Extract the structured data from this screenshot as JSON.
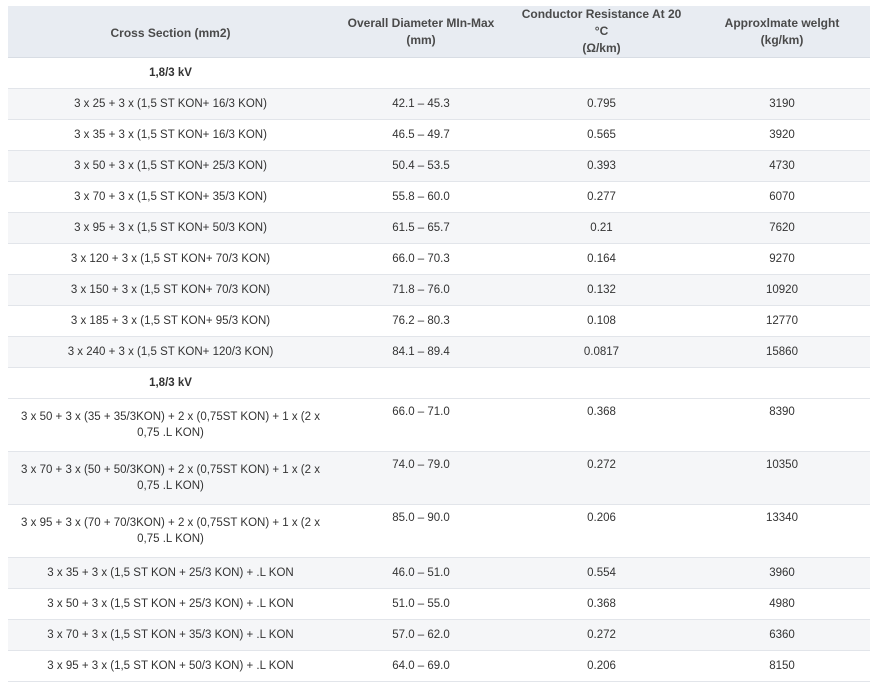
{
  "table": {
    "headers": [
      "Cross Section (mm2)",
      "Overall Diameter MIn-Max\n(mm)",
      "Conductor Resistance At 20 °C\n(Ω/km)",
      "Approxlmate welght\n(kg/km)"
    ],
    "rows": [
      {
        "section": "1,8/3 kV"
      },
      {
        "cells": [
          "3 x 25 + 3 x (1,5 ST KON+ 16/3 KON)",
          "42.1 – 45.3",
          "0.795",
          "3190"
        ]
      },
      {
        "cells": [
          "3 x 35 + 3 x (1,5 ST KON+ 16/3 KON)",
          "46.5 – 49.7",
          "0.565",
          "3920"
        ]
      },
      {
        "cells": [
          "3 x 50 + 3 x (1,5 ST KON+ 25/3 KON)",
          "50.4 – 53.5",
          "0.393",
          "4730"
        ]
      },
      {
        "cells": [
          "3 x 70 + 3 x (1,5 ST KON+ 35/3 KON)",
          "55.8 – 60.0",
          "0.277",
          "6070"
        ]
      },
      {
        "cells": [
          "3 x 95 + 3 x (1,5 ST KON+ 50/3 KON)",
          "61.5 – 65.7",
          "0.21",
          "7620"
        ]
      },
      {
        "cells": [
          "3 x 120 + 3 x (1,5 ST KON+ 70/3 KON)",
          "66.0 – 70.3",
          "0.164",
          "9270"
        ]
      },
      {
        "cells": [
          "3 x 150 + 3 x (1,5 ST KON+ 70/3 KON)",
          "71.8 – 76.0",
          "0.132",
          "10920"
        ]
      },
      {
        "cells": [
          "3 x 185 + 3 x (1,5 ST KON+ 95/3 KON)",
          "76.2 – 80.3",
          "0.108",
          "12770"
        ]
      },
      {
        "cells": [
          "3 x 240 + 3 x (1,5 ST KON+ 120/3 KON)",
          "84.1 – 89.4",
          "0.0817",
          "15860"
        ]
      },
      {
        "section": "1,8/3 kV"
      },
      {
        "cells": [
          "3 x 50 + 3 x (35 + 35/3KON) + 2 x (0,75ST KON) + 1 x (2 x 0,75 .L KON)",
          "66.0 – 71.0",
          "0.368",
          "8390"
        ],
        "tall": true
      },
      {
        "cells": [
          "3 x 70 + 3 x (50 + 50/3KON) + 2 x (0,75ST KON) + 1 x (2 x 0,75 .L KON)",
          "74.0 – 79.0",
          "0.272",
          "10350"
        ],
        "tall": true
      },
      {
        "cells": [
          "3 x 95 + 3 x (70 + 70/3KON) + 2 x (0,75ST KON) + 1 x (2 x 0,75 .L KON)",
          "85.0 – 90.0",
          "0.206",
          "13340"
        ],
        "tall": true
      },
      {
        "cells": [
          "3 x 35 + 3 x (1,5 ST KON + 25/3 KON) + .L KON",
          "46.0 – 51.0",
          "0.554",
          "3960"
        ]
      },
      {
        "cells": [
          "3 x 50 + 3 x (1,5 ST KON + 25/3 KON) + .L KON",
          "51.0 – 55.0",
          "0.368",
          "4980"
        ]
      },
      {
        "cells": [
          "3 x 70 + 3 x (1,5 ST KON + 35/3 KON) + .L KON",
          "57.0 – 62.0",
          "0.272",
          "6360"
        ]
      },
      {
        "cells": [
          "3 x 95 + 3 x (1,5 ST KON + 50/3 KON) + .L KON",
          "64.0 – 69.0",
          "0.206",
          "8150"
        ]
      }
    ]
  }
}
